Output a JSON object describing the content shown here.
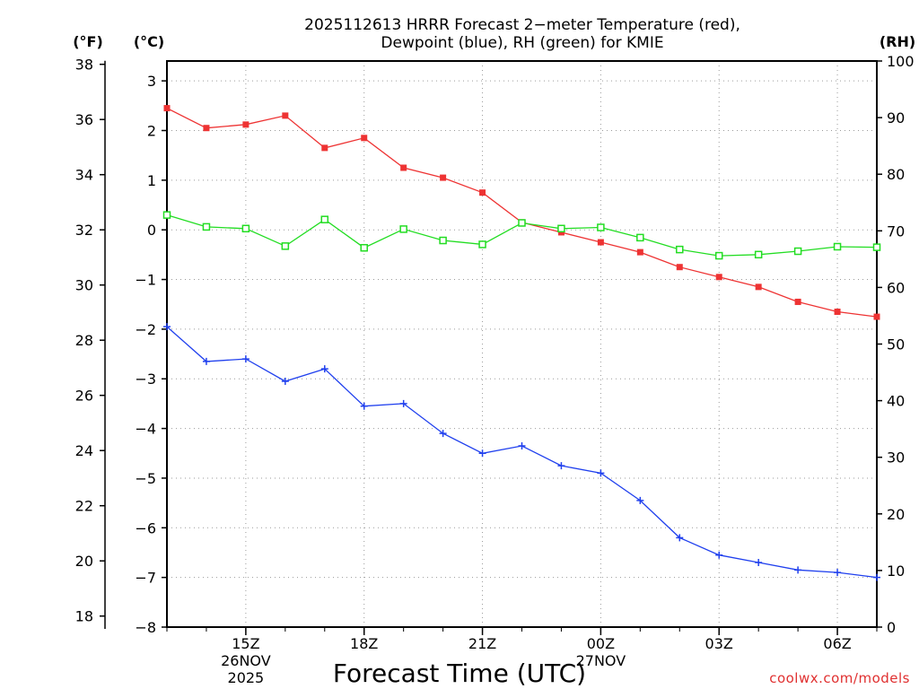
{
  "chart_data": {
    "type": "line",
    "title_line1": "2025112613 HRRR Forecast 2−meter Temperature (red),",
    "title_line2": "Dewpoint (blue), RH (green) for KMIE",
    "xlabel": "Forecast Time (UTC)",
    "credit": "coolwx.com/models",
    "units": {
      "fahrenheit": "(°F)",
      "celsius": "(°C)",
      "rh": "(RH)"
    },
    "x_hours": [
      13,
      14,
      15,
      16,
      17,
      18,
      19,
      20,
      21,
      22,
      23,
      24,
      25,
      26,
      27,
      28,
      29,
      30,
      31
    ],
    "x_ticks": [
      {
        "hour": 15,
        "label": "15Z",
        "date": "26NOV",
        "year": "2025"
      },
      {
        "hour": 18,
        "label": "18Z"
      },
      {
        "hour": 21,
        "label": "21Z"
      },
      {
        "hour": 24,
        "label": "00Z",
        "date": "27NOV"
      },
      {
        "hour": 27,
        "label": "03Z"
      },
      {
        "hour": 30,
        "label": "06Z"
      }
    ],
    "celsius_axis": {
      "ylim": [
        -8,
        3.4
      ],
      "ticks": [
        "3",
        "2",
        "1",
        "0",
        "−1",
        "−2",
        "−3",
        "−4",
        "−5",
        "−6",
        "−7",
        "−8"
      ]
    },
    "fahrenheit_axis": {
      "ticks": [
        "38",
        "36",
        "34",
        "32",
        "30",
        "28",
        "26",
        "24",
        "22",
        "20",
        "18"
      ]
    },
    "rh_axis": {
      "ylim": [
        0,
        100
      ],
      "ticks": [
        "100",
        "90",
        "80",
        "70",
        "60",
        "50",
        "40",
        "30",
        "20",
        "10",
        "0"
      ]
    },
    "series": [
      {
        "name": "Temperature",
        "units": "C",
        "color": "#ee3333",
        "marker": "filled-square",
        "values": [
          2.45,
          2.05,
          2.12,
          2.3,
          1.65,
          1.85,
          1.25,
          1.05,
          0.75,
          0.15,
          -0.05,
          -0.25,
          -0.45,
          -0.75,
          -0.95,
          -1.15,
          -1.45,
          -1.65,
          -1.75
        ]
      },
      {
        "name": "Dewpoint",
        "units": "C",
        "color": "#2040ee",
        "marker": "plus",
        "values": [
          -1.95,
          -2.65,
          -2.6,
          -3.05,
          -2.8,
          -3.55,
          -3.5,
          -4.1,
          -4.5,
          -4.35,
          -4.75,
          -4.9,
          -5.45,
          -6.2,
          -6.55,
          -6.7,
          -6.85,
          -6.9,
          -7.0
        ]
      },
      {
        "name": "RH",
        "units": "%",
        "color": "#22dd22",
        "marker": "open-square",
        "values": [
          72.8,
          70.7,
          70.4,
          67.3,
          72.0,
          67.0,
          70.3,
          68.3,
          67.6,
          71.4,
          70.4,
          70.6,
          68.8,
          66.7,
          65.6,
          65.8,
          66.4,
          67.2,
          67.1
        ]
      }
    ]
  }
}
